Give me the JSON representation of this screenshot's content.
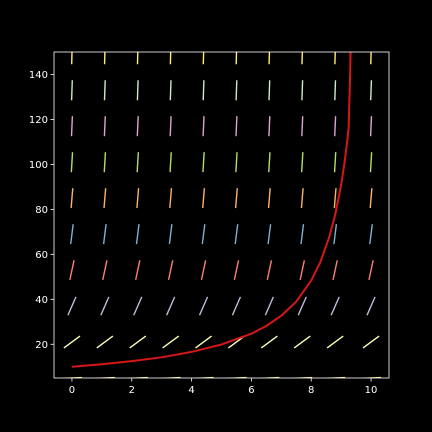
{
  "colors": {
    "background": "#000000",
    "axes": "#ffffff",
    "solution": "#d51716",
    "band_colors": [
      "#ffed6f",
      "#ffffb3",
      "#bebada",
      "#fb8072",
      "#80b1d3",
      "#fdb462",
      "#b3de69",
      "#d9a6d1",
      "#ccebc5"
    ]
  },
  "chart_data": {
    "type": "line",
    "title": "",
    "xlabel": "",
    "ylabel": "",
    "xlim": [
      -0.6,
      10.6
    ],
    "ylim": [
      5,
      150
    ],
    "xticks": [
      0,
      2,
      4,
      6,
      8,
      10
    ],
    "yticks": [
      20,
      40,
      60,
      80,
      100,
      120,
      140
    ],
    "xtick_labels": [
      "0",
      "2",
      "4",
      "6",
      "8",
      "10"
    ],
    "ytick_labels": [
      "20",
      "40",
      "60",
      "80",
      "100",
      "120",
      "140"
    ],
    "grid": false,
    "direction_field": {
      "x": [
        0,
        1.1,
        2.2,
        3.3,
        4.4,
        5.5,
        6.6,
        7.7,
        8.8,
        10.0
      ],
      "y": [
        5,
        21,
        37,
        53,
        69,
        85,
        101,
        117,
        133,
        149
      ],
      "slope_rule": "dy/dx = 0.0222 * y^2"
    },
    "series": [
      {
        "x": [
          0,
          1,
          2,
          3,
          4,
          5,
          6,
          6.5,
          7,
          7.5,
          8,
          8.3,
          8.6,
          8.8,
          9.0,
          9.1,
          9.2,
          9.25
        ],
        "y": [
          10,
          11.1,
          12.5,
          14.2,
          16.6,
          19.9,
          24.7,
          28.2,
          32.7,
          39.0,
          48.4,
          56.4,
          67.6,
          77.5,
          90.9,
          99.6,
          110.0,
          116.2
        ]
      }
    ]
  }
}
